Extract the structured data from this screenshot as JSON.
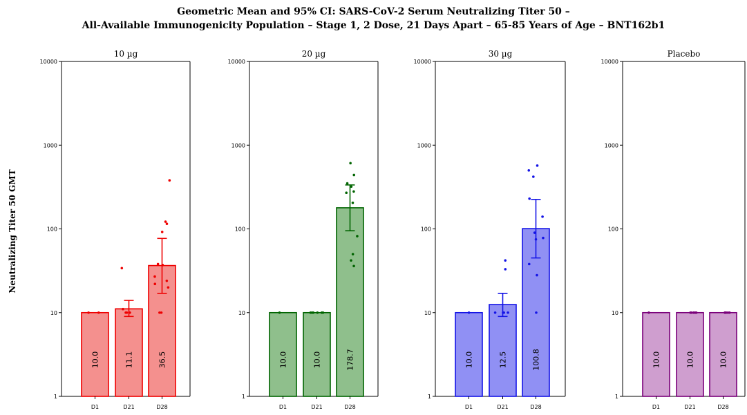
{
  "title_line1": "Geometric Mean and 95% CI: SARS-CoV-2 Serum Neutralizing Titer 50 –",
  "title_line2": "All-Available Immunogenicity Population – Stage 1, 2 Dose, 21 Days Apart – 65-85 Years of Age – BNT162b1",
  "ylabel": "Neutralizing Titer 50 GMT",
  "chart_data": {
    "type": "bar",
    "yscale": "log",
    "ylim": [
      1,
      10000
    ],
    "yticks": [
      1,
      10,
      100,
      1000,
      10000
    ],
    "categories": [
      "D1",
      "D21",
      "D28"
    ],
    "panels": [
      {
        "name": "10 µg",
        "color": "#ee0000",
        "fill": "#f4908e",
        "values": [
          10.0,
          11.1,
          36.5
        ],
        "labels": [
          "10.0",
          "11.1",
          "36.5"
        ],
        "ci": [
          null,
          [
            9.0,
            14.0
          ],
          [
            17.0,
            77.0
          ]
        ],
        "points": [
          [
            10,
            10
          ],
          [
            10,
            10,
            10,
            10,
            11,
            34
          ],
          [
            10,
            10,
            20,
            22,
            24,
            27,
            37,
            38,
            92,
            115,
            122,
            380
          ]
        ]
      },
      {
        "name": "20 µg",
        "color": "#006400",
        "fill": "#8fbf8c",
        "values": [
          10.0,
          10.0,
          178.7
        ],
        "labels": [
          "10.0",
          "10.0",
          "178.7"
        ],
        "ci": [
          null,
          null,
          [
            95.0,
            335.0
          ]
        ],
        "points": [
          [
            10
          ],
          [
            10,
            10,
            10,
            10,
            10,
            10
          ],
          [
            36,
            42,
            50,
            82,
            205,
            270,
            280,
            320,
            350,
            440,
            610
          ]
        ]
      },
      {
        "name": "30 µg",
        "color": "#1414e6",
        "fill": "#9090f4",
        "values": [
          10.0,
          12.5,
          100.8
        ],
        "labels": [
          "10.0",
          "12.5",
          "100.8"
        ],
        "ci": [
          null,
          [
            9.0,
            17.0
          ],
          [
            45.0,
            225.0
          ]
        ],
        "points": [
          [
            10
          ],
          [
            10,
            10,
            10,
            10,
            33,
            42
          ],
          [
            10,
            28,
            38,
            75,
            78,
            90,
            140,
            230,
            420,
            500,
            570
          ]
        ]
      },
      {
        "name": "Placebo",
        "color": "#7a007a",
        "fill": "#cf9ecf",
        "values": [
          10.0,
          10.0,
          10.0
        ],
        "labels": [
          "10.0",
          "10.0",
          "10.0"
        ],
        "ci": [
          null,
          null,
          null
        ],
        "points": [
          [
            10
          ],
          [
            10,
            10,
            10,
            10,
            10,
            10
          ],
          [
            10,
            10,
            10,
            10,
            10,
            10
          ]
        ]
      }
    ]
  }
}
